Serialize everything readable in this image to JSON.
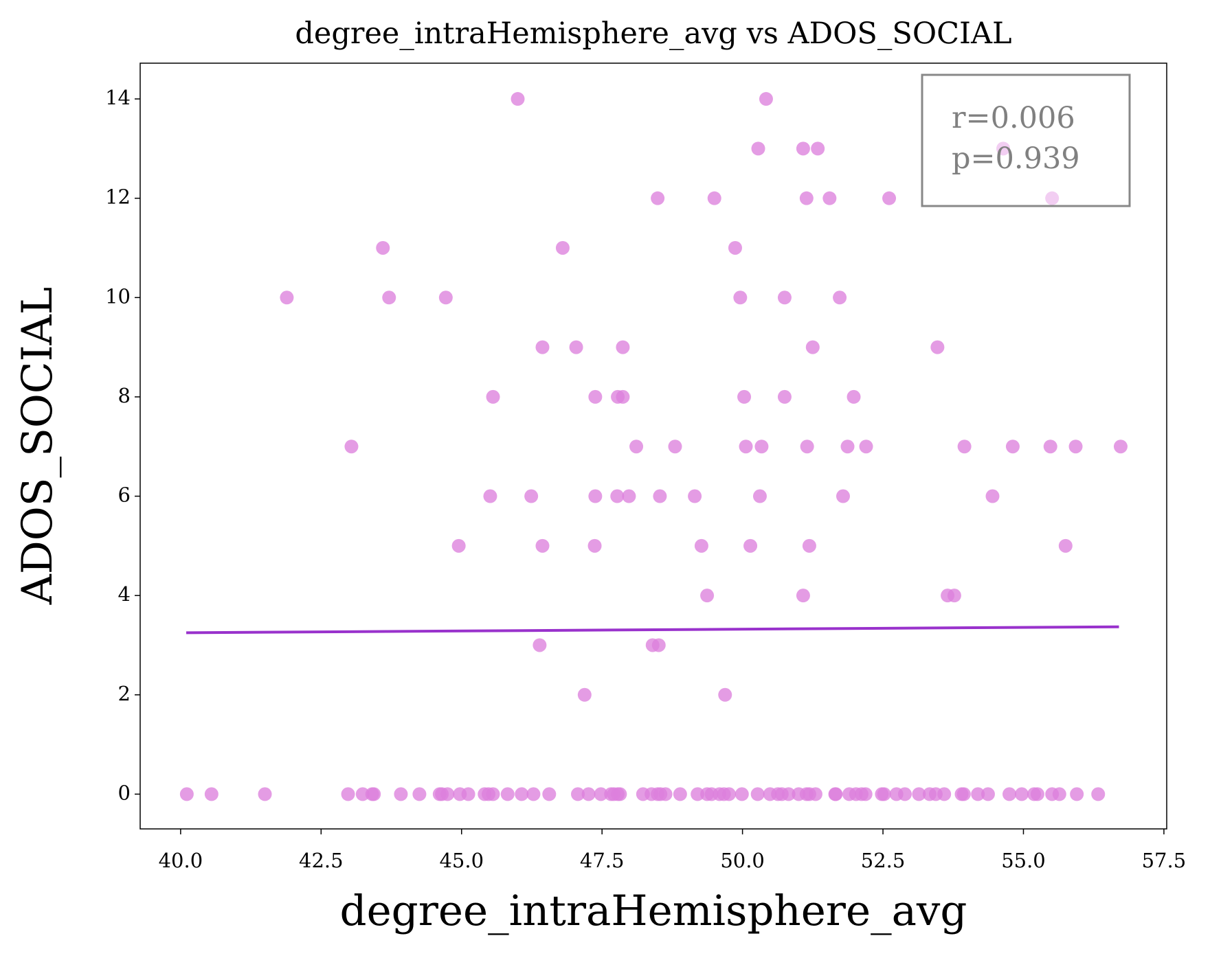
{
  "chart_data": {
    "type": "scatter",
    "title": "degree_intraHemisphere_avg vs ADOS_SOCIAL",
    "xlabel": "degree_intraHemisphere_avg",
    "ylabel": "ADOS_SOCIAL",
    "annotation": [
      "r=0.006",
      "p=0.939"
    ],
    "color": "#dd80dd",
    "x": [
      46.0,
      50.42,
      50.28,
      51.08,
      51.34,
      54.64,
      48.49,
      49.5,
      51.14,
      51.55,
      52.61,
      55.51,
      43.6,
      46.8,
      49.87,
      41.89,
      43.71,
      44.72,
      49.96,
      50.75,
      51.73,
      46.44,
      47.04,
      47.87,
      51.25,
      53.47,
      45.56,
      47.38,
      47.78,
      47.87,
      50.03,
      50.75,
      51.98,
      43.04,
      48.11,
      48.8,
      50.06,
      50.34,
      51.15,
      51.87,
      52.2,
      53.95,
      54.81,
      55.48,
      55.93,
      56.73,
      45.51,
      46.24,
      47.38,
      47.77,
      47.98,
      48.53,
      49.15,
      50.31,
      51.79,
      54.45,
      44.95,
      46.44,
      47.37,
      49.27,
      50.14,
      51.19,
      55.75,
      49.37,
      51.08,
      53.65,
      53.77,
      46.39,
      48.4,
      48.51,
      47.19,
      49.69,
      40.11,
      40.55,
      41.5,
      42.98,
      43.24,
      43.41,
      43.44,
      43.92,
      44.25,
      44.61,
      44.65,
      44.75,
      44.97,
      45.12,
      45.41,
      45.48,
      45.56,
      45.82,
      46.07,
      46.28,
      46.56,
      47.07,
      47.26,
      47.48,
      47.66,
      47.71,
      47.78,
      47.82,
      48.23,
      48.38,
      48.49,
      48.54,
      48.63,
      48.89,
      49.2,
      49.37,
      49.45,
      49.59,
      49.67,
      49.76,
      49.99,
      50.27,
      50.49,
      50.63,
      50.7,
      50.82,
      51.0,
      51.14,
      51.19,
      51.3,
      51.65,
      51.66,
      51.9,
      52.02,
      52.12,
      52.19,
      52.48,
      52.52,
      52.74,
      52.89,
      53.14,
      53.33,
      53.44,
      53.59,
      53.9,
      53.94,
      54.19,
      54.37,
      54.75,
      54.97,
      55.19,
      55.25,
      55.51,
      55.64,
      55.95,
      56.33
    ],
    "y": [
      14,
      14,
      13,
      13,
      13,
      13,
      12,
      12,
      12,
      12,
      12,
      12,
      11,
      11,
      11,
      10,
      10,
      10,
      10,
      10,
      10,
      9,
      9,
      9,
      9,
      9,
      8,
      8,
      8,
      8,
      8,
      8,
      8,
      7,
      7,
      7,
      7,
      7,
      7,
      7,
      7,
      7,
      7,
      7,
      7,
      7,
      6,
      6,
      6,
      6,
      6,
      6,
      6,
      6,
      6,
      6,
      5,
      5,
      5,
      5,
      5,
      5,
      5,
      4,
      4,
      4,
      4,
      3,
      3,
      3,
      2,
      2,
      0,
      0,
      0,
      0,
      0,
      0,
      0,
      0,
      0,
      0,
      0,
      0,
      0,
      0,
      0,
      0,
      0,
      0,
      0,
      0,
      0,
      0,
      0,
      0,
      0,
      0,
      0,
      0,
      0,
      0,
      0,
      0,
      0,
      0,
      0,
      0,
      0,
      0,
      0,
      0,
      0,
      0,
      0,
      0,
      0,
      0,
      0,
      0,
      0,
      0,
      0,
      0,
      0,
      0,
      0,
      0,
      0,
      0,
      0,
      0,
      0,
      0,
      0,
      0,
      0,
      0,
      0,
      0,
      0,
      0,
      0,
      0,
      0,
      0,
      0,
      0
    ],
    "fit": {
      "x": [
        40.1,
        56.7
      ],
      "y": [
        3.25,
        3.37
      ],
      "color": "#9932cc"
    },
    "xlim": [
      39.28,
      57.55
    ],
    "ylim": [
      -0.7,
      14.72
    ],
    "xticks": [
      {
        "value": 40,
        "label": "40.0"
      },
      42.5,
      {
        "value": 45,
        "label": "45.0"
      },
      47.5,
      {
        "value": 50,
        "label": "50.0"
      },
      52.5,
      {
        "value": 55,
        "label": "55.0"
      },
      57.5
    ],
    "yticks": [
      0,
      2,
      4,
      6,
      8,
      10,
      12,
      14
    ],
    "grid": false
  }
}
